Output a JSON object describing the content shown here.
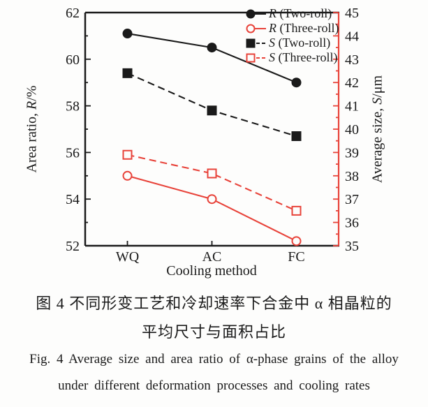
{
  "figure": {
    "caption_zh_line1": "图 4  不同形变工艺和冷却速率下合金中 α 相晶粒的",
    "caption_zh_line2": "平均尺寸与面积占比",
    "caption_en_line1": "Fig. 4  Average size and area ratio of α-phase grains of the alloy",
    "caption_en_line2": "under different deformation processes and cooling rates"
  },
  "chart_data": {
    "type": "line",
    "categories": [
      "WQ",
      "AC",
      "FC"
    ],
    "xlabel": "Cooling method",
    "left_axis": {
      "label": "Area ratio, R/%",
      "label_prefix": "Area ratio, ",
      "label_var": "R",
      "label_suffix": "/%",
      "min": 52,
      "max": 62,
      "major_step": 2,
      "minor_step": 1
    },
    "right_axis": {
      "label": "Average size, S/μm",
      "label_prefix": "Average size, ",
      "label_var": "S",
      "label_suffix": "/μm",
      "min": 35,
      "max": 45,
      "major_step": 1,
      "minor_step": 0.5
    },
    "grid": false,
    "legend_position": "top-right-inside",
    "colors": {
      "two_roll": "#1a1a1a",
      "three_roll": "#e8433a",
      "right_spine": "#e8433a"
    },
    "series": [
      {
        "key": "r-two-roll",
        "name": "R (Two-roll)",
        "label_var": "R",
        "label_rest": " (Two-roll)",
        "axis": "left",
        "values": [
          61.1,
          60.5,
          59.0
        ],
        "marker": "circle",
        "fill": "filled",
        "line": "solid",
        "color": "#1a1a1a"
      },
      {
        "key": "r-three-roll",
        "name": "R (Three-roll)",
        "label_var": "R",
        "label_rest": " (Three-roll)",
        "axis": "left",
        "values": [
          55.0,
          54.0,
          52.2
        ],
        "marker": "circle",
        "fill": "open",
        "line": "solid",
        "color": "#e8433a"
      },
      {
        "key": "s-two-roll",
        "name": "S (Two-roll)",
        "label_var": "S",
        "label_rest": " (Two-roll)",
        "axis": "right",
        "values": [
          42.4,
          40.8,
          39.7
        ],
        "marker": "square",
        "fill": "filled",
        "line": "dashed",
        "color": "#1a1a1a"
      },
      {
        "key": "s-three-roll",
        "name": "S (Three-roll)",
        "label_var": "S",
        "label_rest": " (Three-roll)",
        "axis": "right",
        "values": [
          38.9,
          38.1,
          36.5
        ],
        "marker": "square",
        "fill": "open",
        "line": "dashed",
        "color": "#e8433a"
      }
    ]
  }
}
